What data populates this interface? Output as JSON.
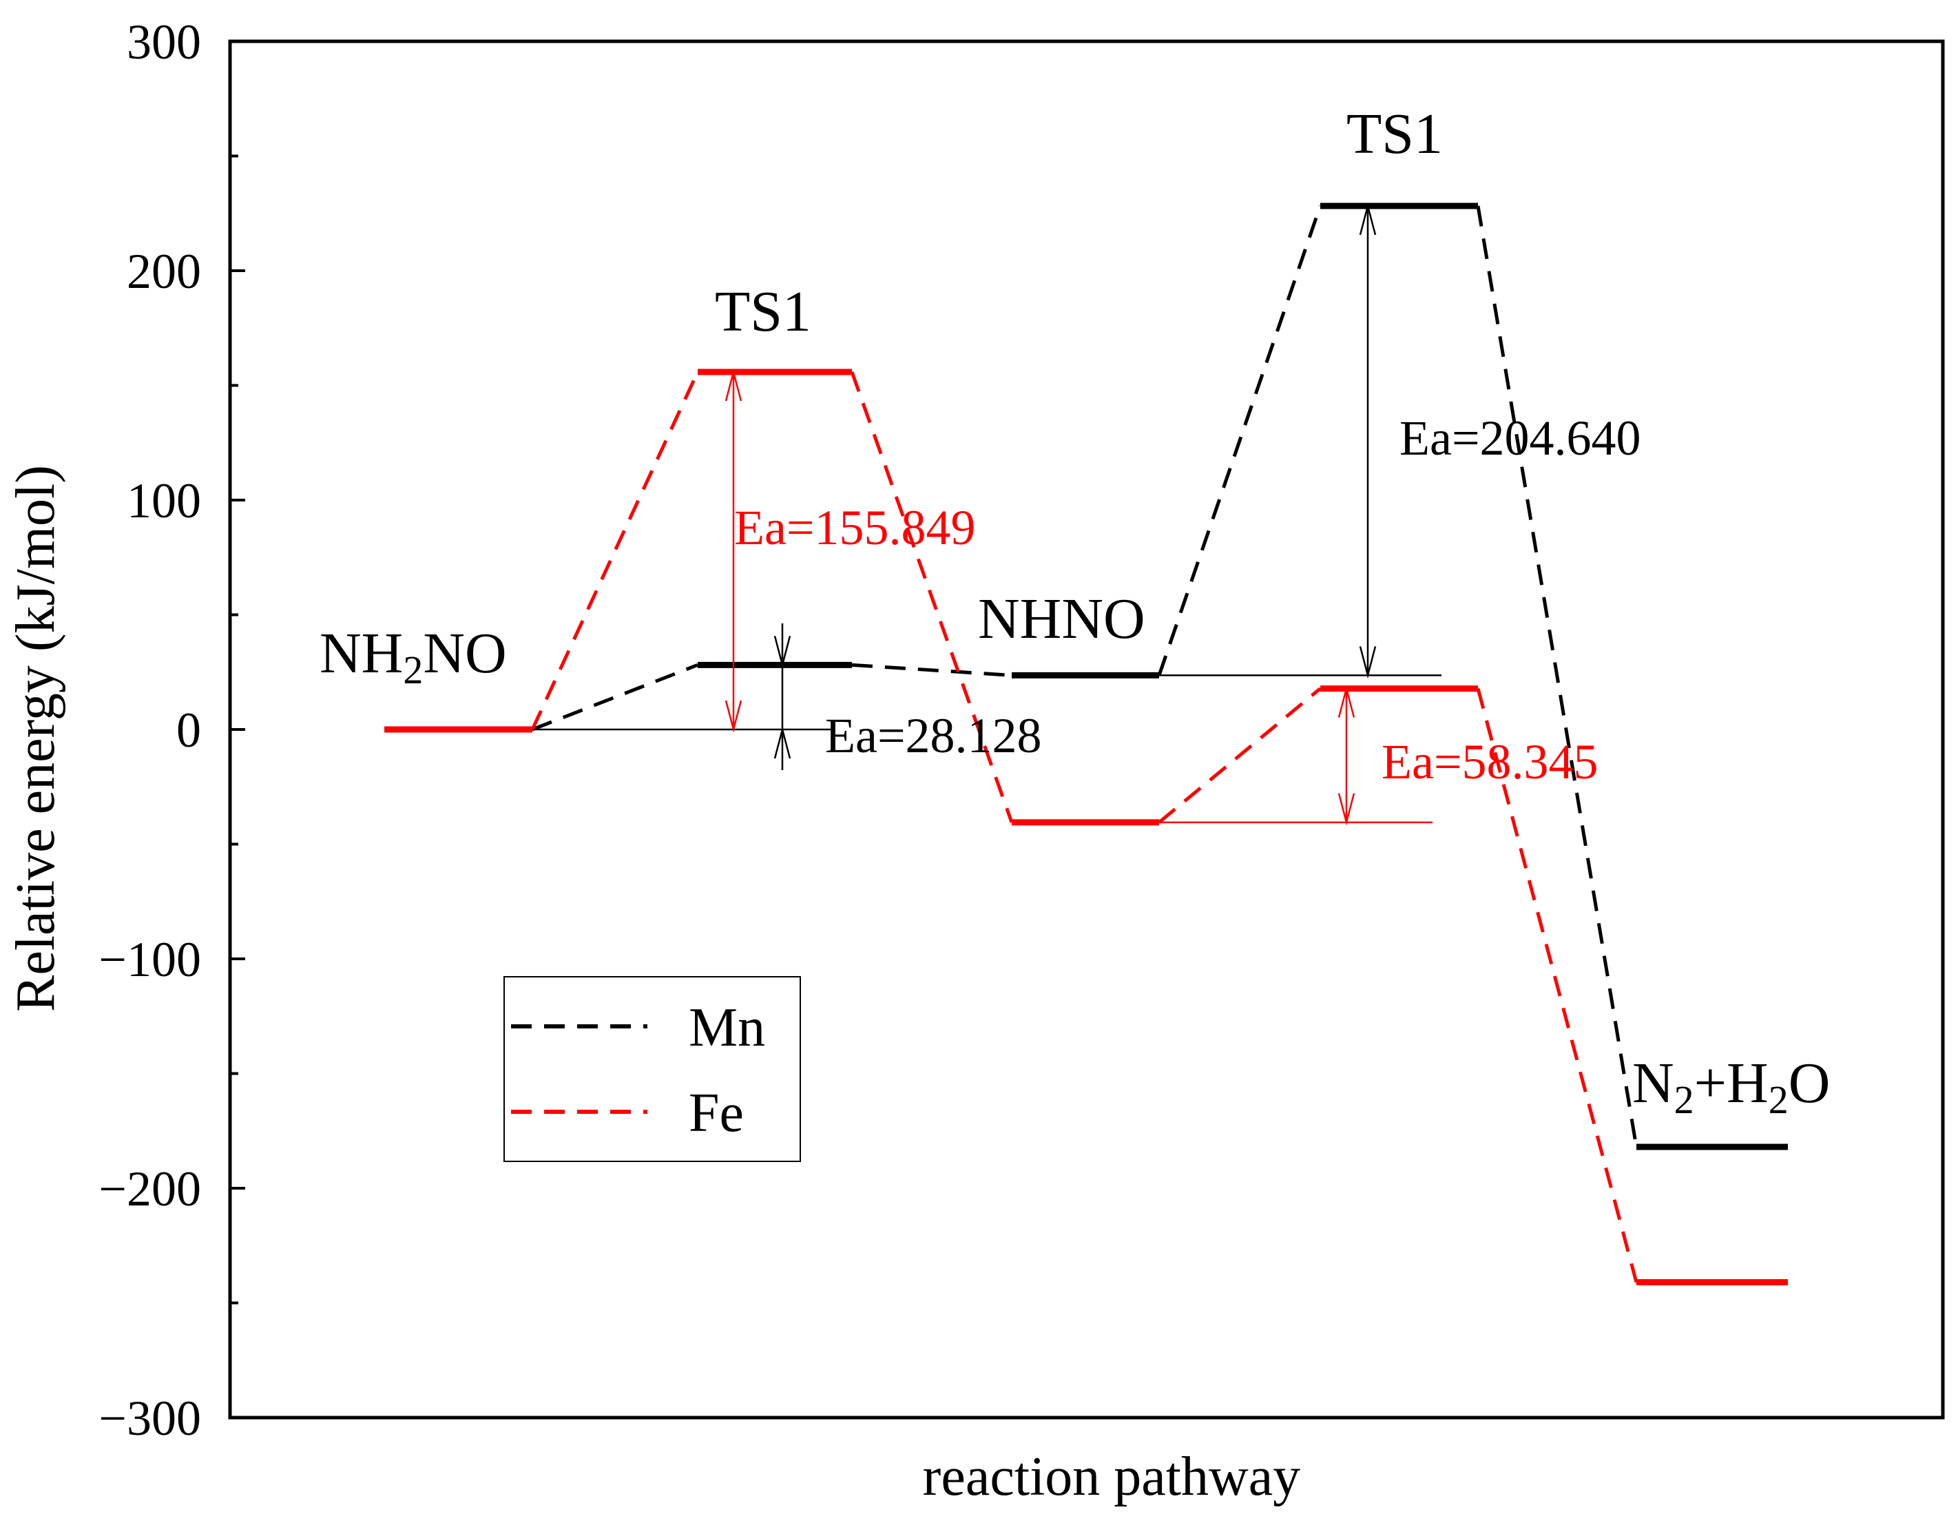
{
  "chart_data": {
    "type": "line",
    "title": "",
    "xlabel": "reaction pathway",
    "ylabel": "Relative energy (kJ/mol)",
    "ylim": [
      -300,
      300
    ],
    "yticks": [
      {
        "value": 300,
        "label": "300"
      },
      {
        "value": 200,
        "label": "200"
      },
      {
        "value": 100,
        "label": "100"
      },
      {
        "value": 0,
        "label": "0"
      },
      {
        "value": -100,
        "label": "−100"
      },
      {
        "value": -200,
        "label": "−200"
      },
      {
        "value": -300,
        "label": "−300"
      }
    ],
    "grid": false,
    "legend_position": "lower-left",
    "series": [
      {
        "name": "Mn",
        "color": "#000000",
        "style": "dashed",
        "levels": [
          0,
          28.128,
          23.6,
          228.24,
          -182
        ]
      },
      {
        "name": "Fe",
        "color": "#ff0000",
        "style": "dashed",
        "levels": [
          0,
          155.849,
          -40.5,
          17.845,
          -241
        ]
      }
    ],
    "state_labels": [
      {
        "id": "nh2no",
        "main": "NH",
        "sub": "2",
        "tail": "NO"
      },
      {
        "id": "ts1-fe",
        "text": "TS1"
      },
      {
        "id": "nhno",
        "text": "NHNO"
      },
      {
        "id": "ts1-mn",
        "text": "TS1"
      },
      {
        "id": "n2h2o",
        "a": "N",
        "sub1": "2",
        "b": "+H",
        "sub2": "2",
        "c": "O"
      }
    ],
    "annotations": [
      {
        "id": "ea-fe-1",
        "text": "Ea=155.849",
        "series": "Fe",
        "from": 0,
        "to": 155.849
      },
      {
        "id": "ea-mn-1",
        "text": "Ea=28.128",
        "series": "Mn",
        "from": 0,
        "to": 28.128
      },
      {
        "id": "ea-mn-2",
        "text": "Ea=204.640",
        "series": "Mn",
        "from": 23.6,
        "to": 228.24
      },
      {
        "id": "ea-fe-2",
        "text": "Ea=58.345",
        "series": "Fe",
        "from": -40.5,
        "to": 17.845
      }
    ]
  }
}
